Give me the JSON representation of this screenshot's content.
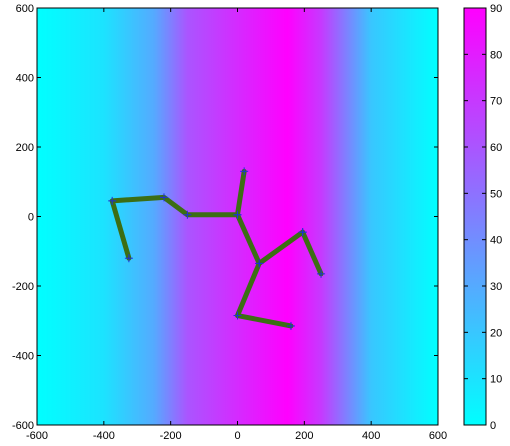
{
  "chart_data": {
    "type": "line",
    "title": "",
    "xlabel": "",
    "ylabel": "",
    "xlim": [
      -600,
      600
    ],
    "ylim": [
      -600,
      600
    ],
    "xticks": [
      -600,
      -400,
      -200,
      0,
      200,
      400,
      600
    ],
    "yticks": [
      -600,
      -400,
      -200,
      0,
      200,
      400,
      600
    ],
    "background_field": {
      "description": "vertical bands, value varies with x",
      "profile_x": [
        -600,
        -400,
        -250,
        -150,
        50,
        150,
        250,
        400,
        600
      ],
      "profile_value": [
        0,
        10,
        30,
        60,
        80,
        90,
        70,
        20,
        0
      ]
    },
    "colorbar": {
      "range": [
        0,
        90
      ],
      "ticks": [
        0,
        10,
        20,
        30,
        40,
        50,
        60,
        70,
        80,
        90
      ],
      "colormap": [
        "#00ffff",
        "#ff00ff"
      ]
    },
    "series": [
      {
        "points": [
          [
            -325,
            -120
          ],
          [
            -375,
            45
          ],
          [
            -220,
            55
          ],
          [
            -150,
            5
          ],
          [
            0,
            5
          ],
          [
            20,
            130
          ],
          [
            0,
            5
          ],
          [
            65,
            -135
          ],
          [
            195,
            -45
          ],
          [
            250,
            -165
          ],
          [
            195,
            -45
          ],
          [
            65,
            -135
          ],
          [
            0,
            -285
          ],
          [
            160,
            -315
          ]
        ],
        "color": "#3c6e14",
        "marker": "+",
        "marker_color": "#1f2fd8"
      }
    ]
  }
}
